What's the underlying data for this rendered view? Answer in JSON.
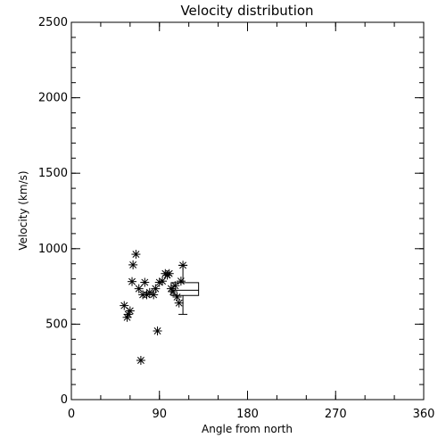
{
  "chart_data": {
    "type": "scatter",
    "title": "Velocity distribution",
    "xlabel": "Angle from north",
    "ylabel": "Velocity (km/s)",
    "xlim": [
      0,
      360
    ],
    "ylim": [
      0,
      2500
    ],
    "xticks": [
      0,
      90,
      180,
      270,
      360
    ],
    "yticks": [
      0,
      500,
      1000,
      1500,
      2000,
      2500
    ],
    "marker": "asterisk",
    "grid": false,
    "legend": "none",
    "points": [
      {
        "x": 54,
        "y": 623
      },
      {
        "x": 57,
        "y": 545
      },
      {
        "x": 58,
        "y": 565
      },
      {
        "x": 60,
        "y": 588
      },
      {
        "x": 62,
        "y": 782
      },
      {
        "x": 63,
        "y": 893
      },
      {
        "x": 66,
        "y": 963
      },
      {
        "x": 69,
        "y": 735
      },
      {
        "x": 71,
        "y": 260
      },
      {
        "x": 73,
        "y": 695
      },
      {
        "x": 75,
        "y": 777
      },
      {
        "x": 77,
        "y": 695
      },
      {
        "x": 80,
        "y": 710
      },
      {
        "x": 84,
        "y": 695
      },
      {
        "x": 86,
        "y": 735
      },
      {
        "x": 88,
        "y": 455
      },
      {
        "x": 90,
        "y": 777
      },
      {
        "x": 93,
        "y": 785
      },
      {
        "x": 96,
        "y": 835
      },
      {
        "x": 98,
        "y": 825
      },
      {
        "x": 100,
        "y": 835
      },
      {
        "x": 102,
        "y": 735
      },
      {
        "x": 104,
        "y": 715
      },
      {
        "x": 106,
        "y": 755
      },
      {
        "x": 108,
        "y": 680
      },
      {
        "x": 110,
        "y": 640
      },
      {
        "x": 112,
        "y": 785
      },
      {
        "x": 114,
        "y": 890
      }
    ],
    "boxplot": {
      "xmin": 102,
      "xmax": 130,
      "whisker_x": 114,
      "lower_whisker": 565,
      "q1": 690,
      "median": 725,
      "q3": 775,
      "upper_whisker": 890
    }
  }
}
